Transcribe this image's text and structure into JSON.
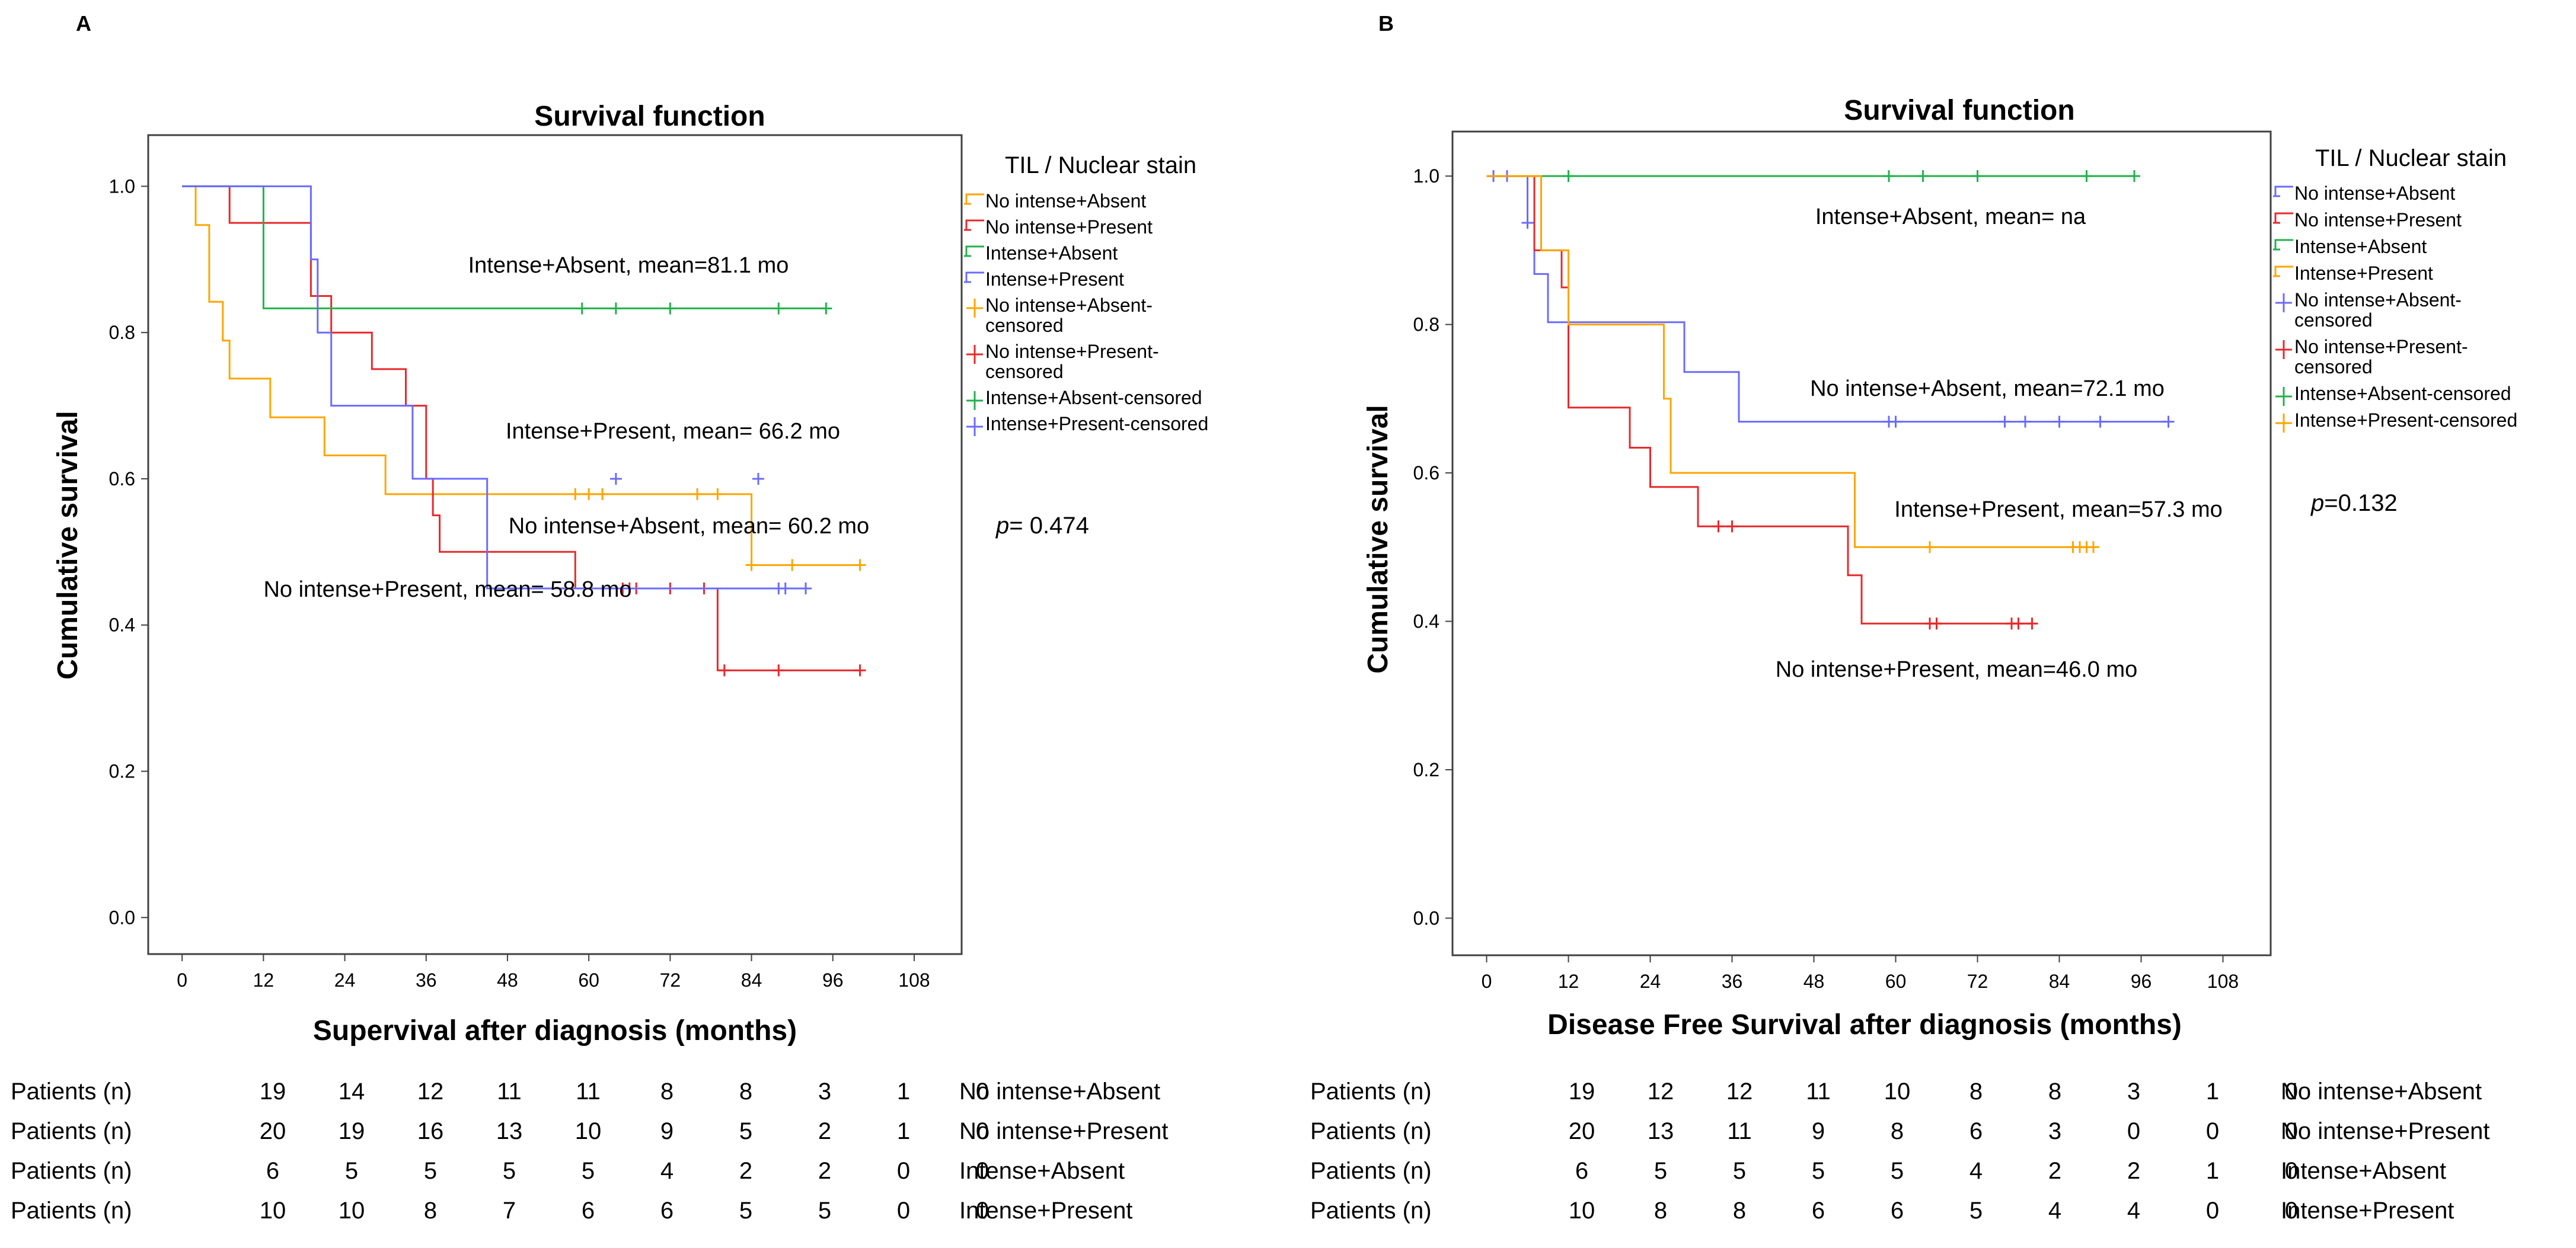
{
  "chart_data": [
    {
      "type": "line",
      "panel_label": "A",
      "title": "Survival function",
      "xlabel": "Supervival after diagnosis (months)",
      "ylabel": "Cumulative survival",
      "xlim": [
        -5,
        115
      ],
      "ylim": [
        -0.05,
        1.07
      ],
      "xticks": [
        "0",
        "12",
        "24",
        "36",
        "48",
        "60",
        "72",
        "84",
        "96",
        "108"
      ],
      "yticks": [
        "0.0",
        "0.2",
        "0.4",
        "0.6",
        "0.8",
        "1.0"
      ],
      "legend_title": "TIL / Nuclear stain",
      "legend": [
        "No intense+Absent",
        "No intense+Present",
        "Intense+Absent",
        "Intense+Present",
        "No intense+Absent-censored",
        "No intense+Present-censored",
        "Intense+Absent-censored",
        "Intense+Present-censored"
      ],
      "p_prefix": "p",
      "p_value": "= 0.474",
      "series": [
        {
          "name": "No intense+Absent",
          "color": "#ffa500",
          "x": [
            0,
            2,
            2,
            4,
            4,
            6,
            6,
            7,
            7,
            13,
            13,
            21,
            21,
            30,
            30,
            84,
            84,
            100
          ],
          "y": [
            1.0,
            1.0,
            0.947,
            0.947,
            0.842,
            0.842,
            0.789,
            0.789,
            0.737,
            0.737,
            0.684,
            0.684,
            0.632,
            0.632,
            0.579,
            0.579,
            0.482,
            0.482
          ],
          "censored_x": [
            58,
            60,
            62,
            76,
            79,
            84,
            90,
            100
          ],
          "censored_y": [
            0.579,
            0.579,
            0.579,
            0.579,
            0.579,
            0.482,
            0.482,
            0.482
          ],
          "annotation": "No intense+Absent, mean= 60.2 mo"
        },
        {
          "name": "No intense+Present",
          "color": "#e8282b",
          "x": [
            0,
            7,
            7,
            19,
            19,
            22,
            22,
            28,
            28,
            33,
            33,
            36,
            36,
            37,
            37,
            38,
            38,
            58,
            58,
            79,
            79,
            100
          ],
          "y": [
            1.0,
            1.0,
            0.95,
            0.95,
            0.85,
            0.85,
            0.8,
            0.8,
            0.75,
            0.75,
            0.7,
            0.7,
            0.6,
            0.6,
            0.55,
            0.55,
            0.5,
            0.5,
            0.45,
            0.45,
            0.338,
            0.338
          ],
          "censored_x": [
            65,
            66,
            67,
            72,
            77,
            80,
            88,
            100
          ],
          "censored_y": [
            0.45,
            0.45,
            0.45,
            0.45,
            0.45,
            0.338,
            0.338,
            0.338
          ],
          "annotation": "No intense+Present, mean= 58.8 mo"
        },
        {
          "name": "Intense+Absent",
          "color": "#21b24b",
          "x": [
            0,
            12,
            12,
            95
          ],
          "y": [
            1.0,
            1.0,
            0.833,
            0.833
          ],
          "censored_x": [
            59,
            64,
            72,
            88,
            95
          ],
          "censored_y": [
            0.833,
            0.833,
            0.833,
            0.833,
            0.833
          ],
          "annotation": "Intense+Absent, mean=81.1 mo"
        },
        {
          "name": "Intense+Present",
          "color": "#6b6bff",
          "x": [
            0,
            19,
            19,
            20,
            20,
            22,
            22,
            34,
            34,
            45,
            45,
            86,
            86,
            92
          ],
          "y": [
            1.0,
            1.0,
            0.9,
            0.9,
            0.8,
            0.8,
            0.7,
            0.7,
            0.6,
            0.6,
            0.45,
            0.45,
            0.45,
            0.45
          ],
          "censored_x": [
            64,
            85,
            88,
            89,
            92
          ],
          "censored_y": [
            0.6,
            0.6,
            0.45,
            0.45,
            0.45
          ],
          "annotation": "Intense+Present, mean= 66.2 mo"
        }
      ],
      "risk_table": {
        "row_label": "Patients (n)",
        "rows": [
          {
            "group": "No intense+Absent",
            "counts": [
              "19",
              "14",
              "12",
              "11",
              "11",
              "8",
              "8",
              "3",
              "1",
              "0"
            ]
          },
          {
            "group": "No intense+Present",
            "counts": [
              "20",
              "19",
              "16",
              "13",
              "10",
              "9",
              "5",
              "2",
              "1",
              "0"
            ]
          },
          {
            "group": "Intense+Absent",
            "counts": [
              "6",
              "5",
              "5",
              "5",
              "5",
              "4",
              "2",
              "2",
              "0",
              "0"
            ]
          },
          {
            "group": "Intense+Present",
            "counts": [
              "10",
              "10",
              "8",
              "7",
              "6",
              "6",
              "5",
              "5",
              "0",
              "0"
            ]
          }
        ]
      }
    },
    {
      "type": "line",
      "panel_label": "B",
      "title": "Survival function",
      "xlabel": "Disease Free Survival after diagnosis (months)",
      "ylabel": "Cumulative survival",
      "xlim": [
        -5,
        115
      ],
      "ylim": [
        -0.05,
        1.06
      ],
      "xticks": [
        "0",
        "12",
        "24",
        "36",
        "48",
        "60",
        "72",
        "84",
        "96",
        "108"
      ],
      "yticks": [
        "0.0",
        "0.2",
        "0.4",
        "0.6",
        "0.8",
        "1.0"
      ],
      "legend_title": "TIL / Nuclear stain",
      "legend": [
        "No intense+Absent",
        "No intense+Present",
        "Intense+Absent",
        "Intense+Present",
        "No intense+Absent-censored",
        "No intense+Present-censored",
        "Intense+Absent-censored",
        "Intense+Present-censored"
      ],
      "p_prefix": "p",
      "p_value": "=0.132",
      "series": [
        {
          "name": "No intense+Absent",
          "color": "#6b6bff",
          "x": [
            0,
            6,
            6,
            7,
            7,
            9,
            9,
            29,
            29,
            37,
            37,
            100
          ],
          "y": [
            1.0,
            1.0,
            0.937,
            0.937,
            0.868,
            0.868,
            0.803,
            0.803,
            0.736,
            0.736,
            0.669,
            0.669
          ],
          "censored_x": [
            1,
            3,
            6,
            59,
            60,
            76,
            79,
            84,
            90,
            100
          ],
          "censored_y": [
            1.0,
            1.0,
            0.937,
            0.669,
            0.669,
            0.669,
            0.669,
            0.669,
            0.669,
            0.669
          ],
          "annotation": "No intense+Absent, mean=72.1 mo"
        },
        {
          "name": "No intense+Present",
          "color": "#e8282b",
          "x": [
            0,
            7,
            7,
            11,
            11,
            12,
            12,
            21,
            21,
            24,
            24,
            31,
            31,
            53,
            53,
            55,
            55,
            80
          ],
          "y": [
            1.0,
            1.0,
            0.9,
            0.9,
            0.85,
            0.85,
            0.688,
            0.688,
            0.634,
            0.634,
            0.581,
            0.581,
            0.528,
            0.528,
            0.462,
            0.462,
            0.397,
            0.397
          ],
          "censored_x": [
            34,
            36,
            65,
            66,
            77,
            78,
            80
          ],
          "censored_y": [
            0.528,
            0.528,
            0.397,
            0.397,
            0.397,
            0.397,
            0.397
          ],
          "annotation": "No intense+Present, mean=46.0 mo"
        },
        {
          "name": "Intense+Absent",
          "color": "#21b24b",
          "x": [
            0,
            95
          ],
          "y": [
            1.0,
            1.0
          ],
          "censored_x": [
            12,
            59,
            64,
            72,
            88,
            95
          ],
          "censored_y": [
            1.0,
            1.0,
            1.0,
            1.0,
            1.0,
            1.0
          ],
          "annotation": "Intense+Absent, mean= na"
        },
        {
          "name": "Intense+Present",
          "color": "#ffa500",
          "x": [
            0,
            8,
            8,
            12,
            12,
            26,
            26,
            27,
            27,
            54,
            54,
            89
          ],
          "y": [
            1.0,
            1.0,
            0.9,
            0.9,
            0.8,
            0.8,
            0.7,
            0.7,
            0.6,
            0.6,
            0.5,
            0.5
          ],
          "censored_x": [
            65,
            86,
            87,
            88,
            89
          ],
          "censored_y": [
            0.5,
            0.5,
            0.5,
            0.5,
            0.5
          ],
          "annotation": "Intense+Present, mean=57.3 mo"
        }
      ],
      "risk_table": {
        "row_label": "Patients (n)",
        "rows": [
          {
            "group": "No intense+Absent",
            "counts": [
              "19",
              "12",
              "12",
              "11",
              "10",
              "8",
              "8",
              "3",
              "1",
              "0"
            ]
          },
          {
            "group": "No intense+Present",
            "counts": [
              "20",
              "13",
              "11",
              "9",
              "8",
              "6",
              "3",
              "0",
              "0",
              "0"
            ]
          },
          {
            "group": "Intense+Absent",
            "counts": [
              "6",
              "5",
              "5",
              "5",
              "5",
              "4",
              "2",
              "2",
              "1",
              "0"
            ]
          },
          {
            "group": "Intense+Present",
            "counts": [
              "10",
              "8",
              "8",
              "6",
              "6",
              "5",
              "4",
              "4",
              "0",
              "0"
            ]
          }
        ]
      }
    }
  ]
}
